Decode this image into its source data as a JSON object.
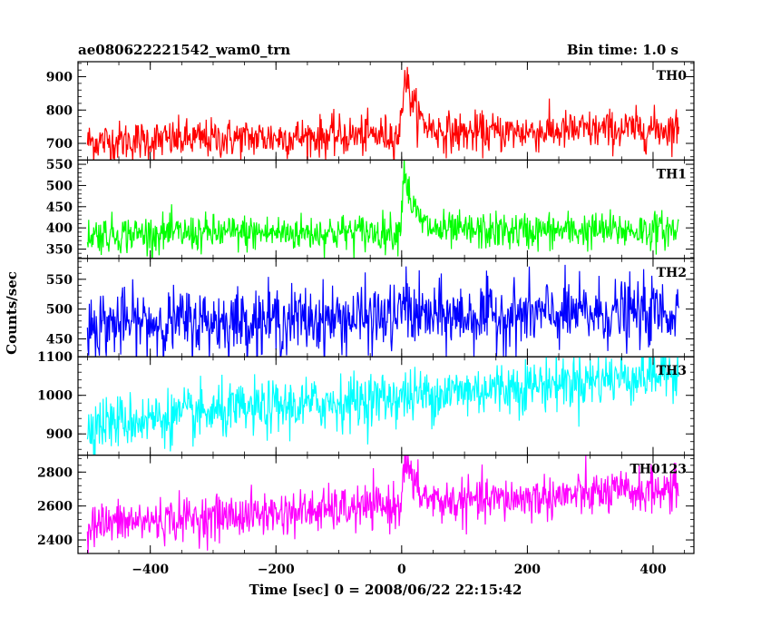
{
  "title_left": "ae080622221542_wam0_trn",
  "title_right": "Bin time: 1.0 s",
  "chart_data": {
    "type": "line",
    "title": "ae080622221542_wam0_trn",
    "xlabel": "Time [sec] 0 = 2008/06/22 22:15:42",
    "ylabel": "Counts/sec",
    "xlim": [
      -515,
      465
    ],
    "xticks": [
      -400,
      -200,
      0,
      200,
      400
    ],
    "xtick_labels": [
      "−400",
      "−200",
      "0",
      "200",
      "400"
    ],
    "x_start": -500,
    "x_end": 441,
    "bin_time": 1.0,
    "panels": [
      {
        "name": "TH0",
        "color": "#ff0000",
        "ylim": [
          650,
          945
        ],
        "yticks": [
          700,
          800,
          900
        ],
        "baseline_start": 705,
        "baseline_end": 745,
        "noise": 30,
        "peak": 915,
        "peak_time": 5,
        "decay": 18
      },
      {
        "name": "TH1",
        "color": "#00ff00",
        "ylim": [
          328,
          560
        ],
        "yticks": [
          350,
          400,
          450,
          500,
          550
        ],
        "baseline_start": 385,
        "baseline_end": 395,
        "noise": 22,
        "peak": 545,
        "peak_time": 4,
        "decay": 15
      },
      {
        "name": "TH2",
        "color": "#0000ff",
        "ylim": [
          420,
          585
        ],
        "yticks": [
          450,
          500,
          550
        ],
        "baseline_start": 475,
        "baseline_end": 495,
        "noise": 28,
        "peak": 520,
        "peak_time": 3,
        "decay": 10
      },
      {
        "name": "TH3",
        "color": "#00ffff",
        "ylim": [
          845,
          1100
        ],
        "yticks": [
          900,
          1000,
          1100
        ],
        "baseline_start": 925,
        "baseline_end": 1060,
        "noise": 35,
        "peak": 0,
        "peak_time": 0,
        "decay": 1
      },
      {
        "name": "TH0123",
        "color": "#ff00ff",
        "ylim": [
          2320,
          2900
        ],
        "yticks": [
          2400,
          2600,
          2800
        ],
        "baseline_start": 2490,
        "baseline_end": 2700,
        "noise": 65,
        "peak": 2880,
        "peak_time": 5,
        "decay": 18
      }
    ]
  }
}
